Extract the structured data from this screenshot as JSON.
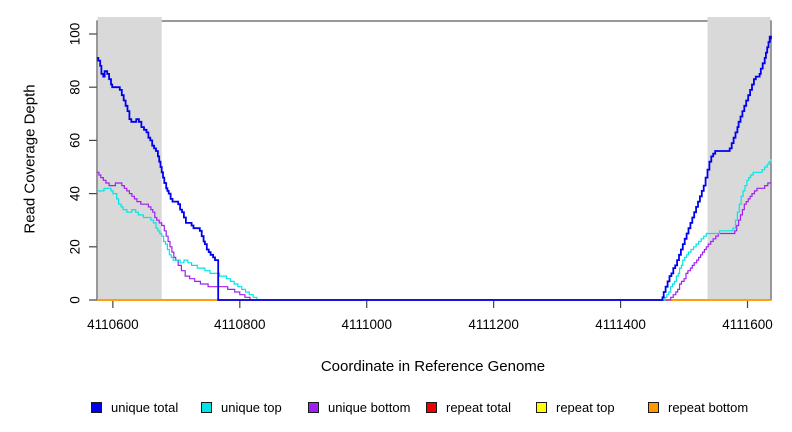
{
  "chart_data": {
    "type": "line",
    "interpolation": "step-after",
    "title": "",
    "xlabel": "Coordinate in Reference Genome",
    "ylabel": "Read Coverage Depth",
    "xlim": [
      4110575,
      4111637
    ],
    "ylim": [
      0,
      106
    ],
    "x_ticks": [
      4110600,
      4110800,
      4111000,
      4111200,
      4111400,
      4111600
    ],
    "y_ticks": [
      0,
      20,
      40,
      60,
      80,
      100
    ],
    "grid": false,
    "legend_position": "bottom-horizontal",
    "shaded_regions": [
      {
        "x0": 4110575,
        "x1": 4110677,
        "color": "#d9d9d9"
      },
      {
        "x0": 4111537,
        "x1": 4111637,
        "color": "#d9d9d9"
      }
    ],
    "series": [
      {
        "name": "unique total",
        "color": "#0000ee",
        "width": 1.8,
        "z": 6,
        "points": [
          [
            4110575,
            91
          ],
          [
            4110577,
            90
          ],
          [
            4110580,
            88
          ],
          [
            4110582,
            85
          ],
          [
            4110585,
            84
          ],
          [
            4110587,
            86
          ],
          [
            4110591,
            85
          ],
          [
            4110594,
            83
          ],
          [
            4110597,
            81
          ],
          [
            4110599,
            80
          ],
          [
            4110611,
            79
          ],
          [
            4110614,
            77
          ],
          [
            4110617,
            75
          ],
          [
            4110620,
            73
          ],
          [
            4110623,
            71
          ],
          [
            4110626,
            68
          ],
          [
            4110629,
            67
          ],
          [
            4110637,
            68
          ],
          [
            4110641,
            67
          ],
          [
            4110645,
            65
          ],
          [
            4110649,
            64
          ],
          [
            4110653,
            63
          ],
          [
            4110656,
            61
          ],
          [
            4110659,
            60
          ],
          [
            4110662,
            58
          ],
          [
            4110665,
            57
          ],
          [
            4110668,
            56
          ],
          [
            4110671,
            54
          ],
          [
            4110673,
            52
          ],
          [
            4110675,
            50
          ],
          [
            4110677,
            48
          ],
          [
            4110679,
            46
          ],
          [
            4110681,
            44
          ],
          [
            4110684,
            42
          ],
          [
            4110686,
            41
          ],
          [
            4110688,
            40
          ],
          [
            4110691,
            38
          ],
          [
            4110694,
            37
          ],
          [
            4110703,
            36
          ],
          [
            4110706,
            34
          ],
          [
            4110709,
            33
          ],
          [
            4110712,
            31
          ],
          [
            4110715,
            29
          ],
          [
            4110724,
            28
          ],
          [
            4110727,
            27
          ],
          [
            4110737,
            26
          ],
          [
            4110740,
            24
          ],
          [
            4110743,
            22
          ],
          [
            4110745,
            21
          ],
          [
            4110748,
            19
          ],
          [
            4110751,
            18
          ],
          [
            4110754,
            17
          ],
          [
            4110758,
            16
          ],
          [
            4110761,
            15
          ],
          [
            4110766,
            0
          ],
          [
            4111466,
            1
          ],
          [
            4111468,
            3
          ],
          [
            4111471,
            5
          ],
          [
            4111474,
            7
          ],
          [
            4111477,
            9
          ],
          [
            4111480,
            10
          ],
          [
            4111483,
            12
          ],
          [
            4111486,
            13
          ],
          [
            4111489,
            15
          ],
          [
            4111492,
            17
          ],
          [
            4111495,
            19
          ],
          [
            4111498,
            21
          ],
          [
            4111501,
            23
          ],
          [
            4111504,
            25
          ],
          [
            4111507,
            27
          ],
          [
            4111510,
            29
          ],
          [
            4111513,
            31
          ],
          [
            4111516,
            33
          ],
          [
            4111519,
            35
          ],
          [
            4111522,
            37
          ],
          [
            4111525,
            39
          ],
          [
            4111528,
            41
          ],
          [
            4111531,
            43
          ],
          [
            4111534,
            46
          ],
          [
            4111537,
            49
          ],
          [
            4111540,
            52
          ],
          [
            4111543,
            54
          ],
          [
            4111546,
            55
          ],
          [
            4111549,
            56
          ],
          [
            4111572,
            57
          ],
          [
            4111575,
            59
          ],
          [
            4111578,
            61
          ],
          [
            4111581,
            63
          ],
          [
            4111584,
            65
          ],
          [
            4111586,
            67
          ],
          [
            4111589,
            69
          ],
          [
            4111592,
            71
          ],
          [
            4111595,
            73
          ],
          [
            4111598,
            75
          ],
          [
            4111601,
            77
          ],
          [
            4111604,
            79
          ],
          [
            4111607,
            81
          ],
          [
            4111610,
            83
          ],
          [
            4111613,
            84
          ],
          [
            4111619,
            85
          ],
          [
            4111621,
            87
          ],
          [
            4111624,
            89
          ],
          [
            4111627,
            91
          ],
          [
            4111629,
            93
          ],
          [
            4111631,
            95
          ],
          [
            4111633,
            97
          ],
          [
            4111635,
            99
          ],
          [
            4111637,
            98
          ]
        ]
      },
      {
        "name": "unique top",
        "color": "#00e5e5",
        "width": 1.2,
        "z": 5,
        "points": [
          [
            4110575,
            41
          ],
          [
            4110586,
            42
          ],
          [
            4110597,
            41
          ],
          [
            4110600,
            40
          ],
          [
            4110606,
            38
          ],
          [
            4110609,
            36
          ],
          [
            4110613,
            35
          ],
          [
            4110616,
            34
          ],
          [
            4110622,
            33
          ],
          [
            4110630,
            34
          ],
          [
            4110636,
            33
          ],
          [
            4110640,
            32
          ],
          [
            4110648,
            31
          ],
          [
            4110660,
            30
          ],
          [
            4110664,
            29
          ],
          [
            4110668,
            27
          ],
          [
            4110671,
            26
          ],
          [
            4110674,
            25
          ],
          [
            4110677,
            24
          ],
          [
            4110680,
            22
          ],
          [
            4110683,
            21
          ],
          [
            4110686,
            19
          ],
          [
            4110689,
            17
          ],
          [
            4110692,
            16
          ],
          [
            4110695,
            15
          ],
          [
            4110706,
            14
          ],
          [
            4110712,
            15
          ],
          [
            4110718,
            14
          ],
          [
            4110724,
            13
          ],
          [
            4110733,
            12
          ],
          [
            4110745,
            11
          ],
          [
            4110753,
            10
          ],
          [
            4110768,
            9
          ],
          [
            4110779,
            8
          ],
          [
            4110785,
            7
          ],
          [
            4110791,
            6
          ],
          [
            4110797,
            5
          ],
          [
            4110803,
            4
          ],
          [
            4110809,
            3
          ],
          [
            4110815,
            2
          ],
          [
            4110821,
            1
          ],
          [
            4110827,
            0
          ],
          [
            4111470,
            1
          ],
          [
            4111473,
            2
          ],
          [
            4111476,
            3
          ],
          [
            4111479,
            5
          ],
          [
            4111482,
            6
          ],
          [
            4111485,
            7
          ],
          [
            4111488,
            9
          ],
          [
            4111491,
            10
          ],
          [
            4111493,
            12
          ],
          [
            4111496,
            13
          ],
          [
            4111498,
            15
          ],
          [
            4111501,
            16
          ],
          [
            4111504,
            17
          ],
          [
            4111507,
            18
          ],
          [
            4111511,
            19
          ],
          [
            4111515,
            20
          ],
          [
            4111519,
            21
          ],
          [
            4111523,
            22
          ],
          [
            4111527,
            23
          ],
          [
            4111531,
            24
          ],
          [
            4111535,
            25
          ],
          [
            4111556,
            26
          ],
          [
            4111577,
            27
          ],
          [
            4111581,
            30
          ],
          [
            4111584,
            33
          ],
          [
            4111587,
            36
          ],
          [
            4111590,
            39
          ],
          [
            4111593,
            41
          ],
          [
            4111596,
            43
          ],
          [
            4111599,
            45
          ],
          [
            4111602,
            46
          ],
          [
            4111605,
            47
          ],
          [
            4111609,
            48
          ],
          [
            4111623,
            49
          ],
          [
            4111627,
            50
          ],
          [
            4111631,
            51
          ],
          [
            4111634,
            52
          ],
          [
            4111637,
            53
          ]
        ]
      },
      {
        "name": "unique bottom",
        "color": "#a020f0",
        "width": 1.2,
        "z": 4,
        "points": [
          [
            4110575,
            48
          ],
          [
            4110578,
            47
          ],
          [
            4110581,
            46
          ],
          [
            4110585,
            45
          ],
          [
            4110589,
            44
          ],
          [
            4110594,
            43
          ],
          [
            4110604,
            44
          ],
          [
            4110614,
            43
          ],
          [
            4110618,
            42
          ],
          [
            4110622,
            41
          ],
          [
            4110626,
            40
          ],
          [
            4110630,
            39
          ],
          [
            4110634,
            38
          ],
          [
            4110638,
            37
          ],
          [
            4110644,
            36
          ],
          [
            4110656,
            35
          ],
          [
            4110660,
            34
          ],
          [
            4110663,
            33
          ],
          [
            4110666,
            31
          ],
          [
            4110669,
            30
          ],
          [
            4110673,
            29
          ],
          [
            4110677,
            28
          ],
          [
            4110681,
            26
          ],
          [
            4110684,
            24
          ],
          [
            4110687,
            22
          ],
          [
            4110690,
            20
          ],
          [
            4110693,
            18
          ],
          [
            4110696,
            16
          ],
          [
            4110699,
            15
          ],
          [
            4110703,
            13
          ],
          [
            4110708,
            11
          ],
          [
            4110714,
            9
          ],
          [
            4110721,
            8
          ],
          [
            4110729,
            7
          ],
          [
            4110738,
            6
          ],
          [
            4110750,
            5
          ],
          [
            4110781,
            4
          ],
          [
            4110792,
            3
          ],
          [
            4110800,
            2
          ],
          [
            4110808,
            1
          ],
          [
            4110816,
            0
          ],
          [
            4111479,
            1
          ],
          [
            4111483,
            2
          ],
          [
            4111487,
            3
          ],
          [
            4111490,
            4
          ],
          [
            4111493,
            6
          ],
          [
            4111496,
            7
          ],
          [
            4111500,
            8
          ],
          [
            4111503,
            10
          ],
          [
            4111506,
            11
          ],
          [
            4111510,
            12
          ],
          [
            4111513,
            13
          ],
          [
            4111516,
            14
          ],
          [
            4111520,
            15
          ],
          [
            4111523,
            16
          ],
          [
            4111526,
            17
          ],
          [
            4111529,
            18
          ],
          [
            4111532,
            19
          ],
          [
            4111535,
            20
          ],
          [
            4111538,
            21
          ],
          [
            4111542,
            22
          ],
          [
            4111546,
            23
          ],
          [
            4111550,
            24
          ],
          [
            4111554,
            25
          ],
          [
            4111580,
            26
          ],
          [
            4111583,
            28
          ],
          [
            4111586,
            30
          ],
          [
            4111589,
            32
          ],
          [
            4111592,
            34
          ],
          [
            4111595,
            36
          ],
          [
            4111598,
            37
          ],
          [
            4111601,
            38
          ],
          [
            4111604,
            39
          ],
          [
            4111607,
            40
          ],
          [
            4111611,
            41
          ],
          [
            4111615,
            42
          ],
          [
            4111627,
            43
          ],
          [
            4111632,
            44
          ],
          [
            4111637,
            44
          ]
        ]
      },
      {
        "name": "repeat total",
        "color": "#ee0000",
        "width": 1.5,
        "z": 1,
        "points": [
          [
            4110575,
            0
          ],
          [
            4111637,
            0
          ]
        ]
      },
      {
        "name": "repeat top",
        "color": "#ffff00",
        "width": 1.5,
        "z": 2,
        "points": [
          [
            4110575,
            0
          ],
          [
            4111637,
            0
          ]
        ]
      },
      {
        "name": "repeat bottom",
        "color": "#ff9900",
        "width": 1.6,
        "z": 3,
        "points": [
          [
            4110575,
            0
          ],
          [
            4111637,
            0
          ]
        ]
      }
    ]
  },
  "legend_item_lefts": [
    91,
    201,
    308,
    426,
    536,
    648
  ]
}
